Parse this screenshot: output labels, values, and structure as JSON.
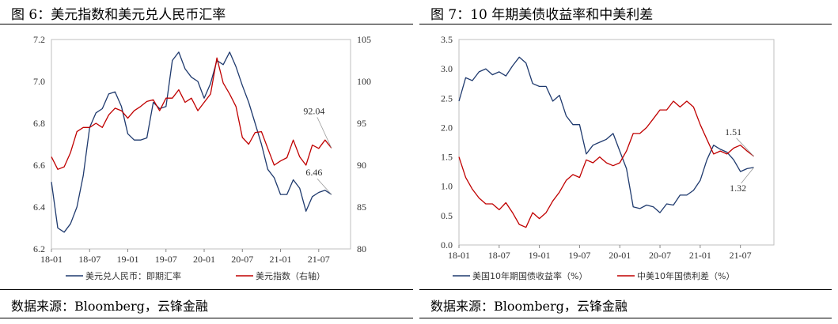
{
  "left": {
    "title": "图 6：美元指数和美元兑人民币汇率",
    "source": "数据来源：Bloomberg，云锋金融",
    "chart_data": {
      "type": "line",
      "x_ticks": [
        "18-01",
        "18-07",
        "19-01",
        "19-07",
        "20-01",
        "20-07",
        "21-01",
        "21-07"
      ],
      "y_left": {
        "ticks": [
          "6.2",
          "6.4",
          "6.6",
          "6.8",
          "7.0",
          "7.2"
        ],
        "lim": [
          6.2,
          7.2
        ]
      },
      "y_right": {
        "ticks": [
          "80",
          "85",
          "90",
          "95",
          "100",
          "105"
        ],
        "lim": [
          80,
          105
        ]
      },
      "series": [
        {
          "name": "美元兑人民币：即期汇率",
          "axis": "left",
          "color": "#1f3a6e",
          "points": [
            [
              "18-01",
              6.52
            ],
            [
              "18-02",
              6.3
            ],
            [
              "18-03",
              6.28
            ],
            [
              "18-04",
              6.32
            ],
            [
              "18-05",
              6.4
            ],
            [
              "18-06",
              6.55
            ],
            [
              "18-07",
              6.78
            ],
            [
              "18-08",
              6.85
            ],
            [
              "18-09",
              6.87
            ],
            [
              "18-10",
              6.94
            ],
            [
              "18-11",
              6.95
            ],
            [
              "18-12",
              6.88
            ],
            [
              "19-01",
              6.75
            ],
            [
              "19-02",
              6.72
            ],
            [
              "19-03",
              6.72
            ],
            [
              "19-04",
              6.73
            ],
            [
              "19-05",
              6.9
            ],
            [
              "19-06",
              6.87
            ],
            [
              "19-07",
              6.88
            ],
            [
              "19-08",
              7.1
            ],
            [
              "19-09",
              7.14
            ],
            [
              "19-10",
              7.06
            ],
            [
              "19-11",
              7.02
            ],
            [
              "19-12",
              7.0
            ],
            [
              "20-01",
              6.92
            ],
            [
              "20-02",
              6.99
            ],
            [
              "20-03",
              7.1
            ],
            [
              "20-04",
              7.08
            ],
            [
              "20-05",
              7.14
            ],
            [
              "20-06",
              7.07
            ],
            [
              "20-07",
              6.98
            ],
            [
              "20-08",
              6.9
            ],
            [
              "20-09",
              6.8
            ],
            [
              "20-10",
              6.7
            ],
            [
              "20-11",
              6.58
            ],
            [
              "20-12",
              6.54
            ],
            [
              "21-01",
              6.46
            ],
            [
              "21-02",
              6.46
            ],
            [
              "21-03",
              6.53
            ],
            [
              "21-04",
              6.49
            ],
            [
              "21-05",
              6.38
            ],
            [
              "21-06",
              6.45
            ],
            [
              "21-07",
              6.47
            ],
            [
              "21-08",
              6.48
            ],
            [
              "21-09",
              6.46
            ]
          ],
          "end_label": "6.46"
        },
        {
          "name": "美元指数（右轴）",
          "axis": "right",
          "color": "#c00000",
          "points": [
            [
              "18-01",
              91.0
            ],
            [
              "18-02",
              89.5
            ],
            [
              "18-03",
              89.8
            ],
            [
              "18-04",
              91.5
            ],
            [
              "18-05",
              94.0
            ],
            [
              "18-06",
              94.5
            ],
            [
              "18-07",
              94.5
            ],
            [
              "18-08",
              95.0
            ],
            [
              "18-09",
              94.5
            ],
            [
              "18-10",
              96.0
            ],
            [
              "18-11",
              96.8
            ],
            [
              "18-12",
              96.5
            ],
            [
              "19-01",
              95.6
            ],
            [
              "19-02",
              96.5
            ],
            [
              "19-03",
              97.0
            ],
            [
              "19-04",
              97.6
            ],
            [
              "19-05",
              97.8
            ],
            [
              "19-06",
              96.5
            ],
            [
              "19-07",
              98.0
            ],
            [
              "19-08",
              98.0
            ],
            [
              "19-09",
              99.0
            ],
            [
              "19-10",
              97.5
            ],
            [
              "19-11",
              98.0
            ],
            [
              "19-12",
              96.5
            ],
            [
              "20-01",
              97.5
            ],
            [
              "20-02",
              98.5
            ],
            [
              "20-03",
              102.8
            ],
            [
              "20-04",
              99.8
            ],
            [
              "20-05",
              98.5
            ],
            [
              "20-06",
              97.0
            ],
            [
              "20-07",
              93.3
            ],
            [
              "20-08",
              92.5
            ],
            [
              "20-09",
              93.9
            ],
            [
              "20-10",
              94.0
            ],
            [
              "20-11",
              92.0
            ],
            [
              "20-12",
              90.0
            ],
            [
              "21-01",
              90.5
            ],
            [
              "21-02",
              90.9
            ],
            [
              "21-03",
              93.0
            ],
            [
              "21-04",
              91.0
            ],
            [
              "21-05",
              90.0
            ],
            [
              "21-06",
              92.4
            ],
            [
              "21-07",
              92.0
            ],
            [
              "21-08",
              93.0
            ],
            [
              "21-09",
              92.04
            ]
          ],
          "end_label": "92.04"
        }
      ]
    }
  },
  "right": {
    "title": "图 7：10 年期美债收益率和中美利差",
    "source": "数据来源：Bloomberg，云锋金融",
    "chart_data": {
      "type": "line",
      "x_ticks": [
        "18-01",
        "18-07",
        "19-01",
        "19-07",
        "20-01",
        "20-07",
        "21-01",
        "21-07"
      ],
      "y": {
        "ticks": [
          "0.0",
          "0.5",
          "1.0",
          "1.5",
          "2.0",
          "2.5",
          "3.0",
          "3.5"
        ],
        "lim": [
          0,
          3.5
        ]
      },
      "series": [
        {
          "name": "美国10年期国债收益率（%）",
          "color": "#1f3a6e",
          "points": [
            [
              "18-01",
              2.45
            ],
            [
              "18-02",
              2.85
            ],
            [
              "18-03",
              2.8
            ],
            [
              "18-04",
              2.95
            ],
            [
              "18-05",
              3.0
            ],
            [
              "18-06",
              2.9
            ],
            [
              "18-07",
              2.95
            ],
            [
              "18-08",
              2.88
            ],
            [
              "18-09",
              3.05
            ],
            [
              "18-10",
              3.2
            ],
            [
              "18-11",
              3.1
            ],
            [
              "18-12",
              2.75
            ],
            [
              "19-01",
              2.7
            ],
            [
              "19-02",
              2.7
            ],
            [
              "19-03",
              2.45
            ],
            [
              "19-04",
              2.55
            ],
            [
              "19-05",
              2.2
            ],
            [
              "19-06",
              2.05
            ],
            [
              "19-07",
              2.05
            ],
            [
              "19-08",
              1.55
            ],
            [
              "19-09",
              1.7
            ],
            [
              "19-10",
              1.75
            ],
            [
              "19-11",
              1.8
            ],
            [
              "19-12",
              1.9
            ],
            [
              "20-01",
              1.6
            ],
            [
              "20-02",
              1.3
            ],
            [
              "20-03",
              0.65
            ],
            [
              "20-04",
              0.62
            ],
            [
              "20-05",
              0.68
            ],
            [
              "20-06",
              0.65
            ],
            [
              "20-07",
              0.55
            ],
            [
              "20-08",
              0.7
            ],
            [
              "20-09",
              0.68
            ],
            [
              "20-10",
              0.85
            ],
            [
              "20-11",
              0.85
            ],
            [
              "20-12",
              0.93
            ],
            [
              "21-01",
              1.1
            ],
            [
              "21-02",
              1.45
            ],
            [
              "21-03",
              1.7
            ],
            [
              "21-04",
              1.63
            ],
            [
              "21-05",
              1.58
            ],
            [
              "21-06",
              1.45
            ],
            [
              "21-07",
              1.25
            ],
            [
              "21-08",
              1.3
            ],
            [
              "21-09",
              1.32
            ]
          ],
          "end_label": "1.32"
        },
        {
          "name": "中美10年国债利差（%）",
          "color": "#c00000",
          "points": [
            [
              "18-01",
              1.5
            ],
            [
              "18-02",
              1.15
            ],
            [
              "18-03",
              0.95
            ],
            [
              "18-04",
              0.8
            ],
            [
              "18-05",
              0.7
            ],
            [
              "18-06",
              0.7
            ],
            [
              "18-07",
              0.6
            ],
            [
              "18-08",
              0.72
            ],
            [
              "18-09",
              0.55
            ],
            [
              "18-10",
              0.35
            ],
            [
              "18-11",
              0.3
            ],
            [
              "18-12",
              0.55
            ],
            [
              "19-01",
              0.45
            ],
            [
              "19-02",
              0.55
            ],
            [
              "19-03",
              0.75
            ],
            [
              "19-04",
              0.9
            ],
            [
              "19-05",
              1.1
            ],
            [
              "19-06",
              1.2
            ],
            [
              "19-07",
              1.15
            ],
            [
              "19-08",
              1.45
            ],
            [
              "19-09",
              1.4
            ],
            [
              "19-10",
              1.5
            ],
            [
              "19-11",
              1.4
            ],
            [
              "19-12",
              1.35
            ],
            [
              "20-01",
              1.4
            ],
            [
              "20-02",
              1.6
            ],
            [
              "20-03",
              1.9
            ],
            [
              "20-04",
              1.9
            ],
            [
              "20-05",
              2.0
            ],
            [
              "20-06",
              2.15
            ],
            [
              "20-07",
              2.3
            ],
            [
              "20-08",
              2.3
            ],
            [
              "20-09",
              2.45
            ],
            [
              "20-10",
              2.35
            ],
            [
              "20-11",
              2.45
            ],
            [
              "20-12",
              2.35
            ],
            [
              "21-01",
              2.05
            ],
            [
              "21-02",
              1.8
            ],
            [
              "21-03",
              1.55
            ],
            [
              "21-04",
              1.6
            ],
            [
              "21-05",
              1.55
            ],
            [
              "21-06",
              1.65
            ],
            [
              "21-07",
              1.7
            ],
            [
              "21-08",
              1.6
            ],
            [
              "21-09",
              1.51
            ]
          ],
          "end_label": "1.51"
        }
      ]
    }
  }
}
